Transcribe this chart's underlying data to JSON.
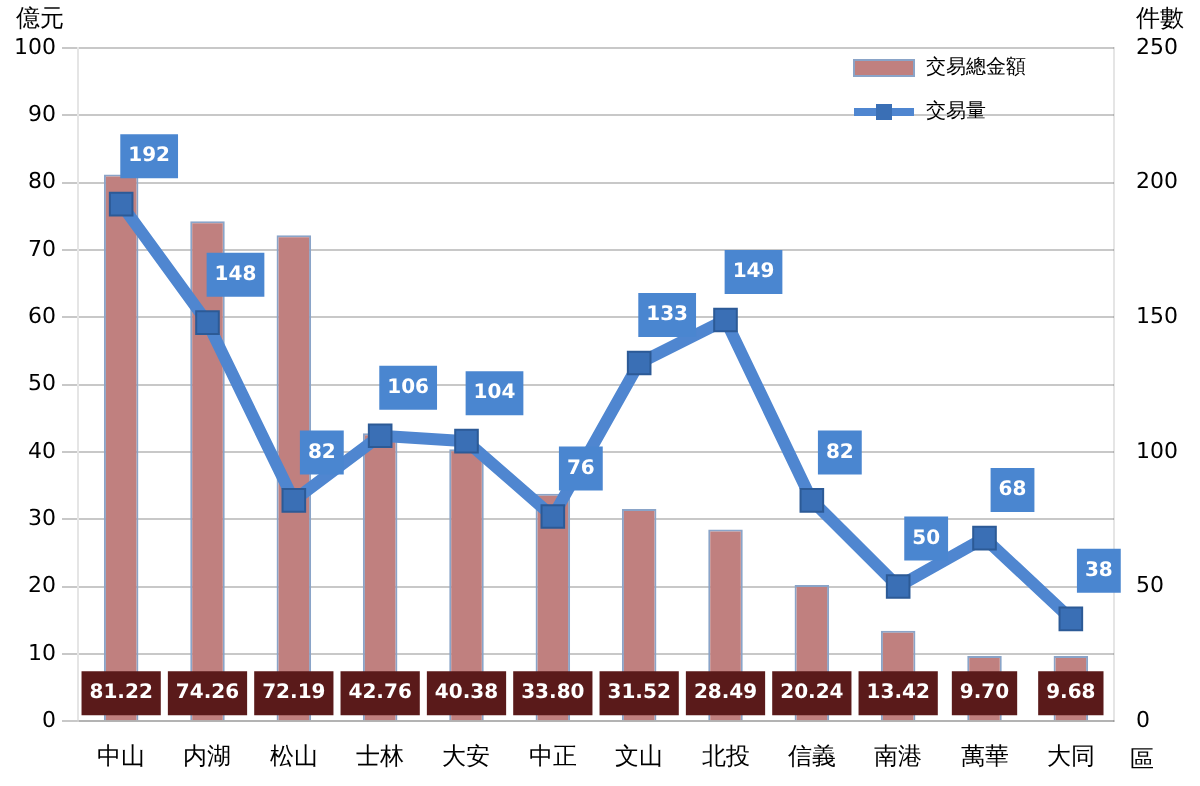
{
  "chart_data": {
    "type": "bar",
    "categories": [
      "中山",
      "内湖",
      "松山",
      "士林",
      "大安",
      "中正",
      "文山",
      "北投",
      "信義",
      "南港",
      "萬華",
      "大同"
    ],
    "xlabel": "區",
    "ylabel": "億元",
    "y2label": "件數",
    "ylim": [
      0,
      100
    ],
    "yticks": [
      0,
      10,
      20,
      30,
      40,
      50,
      60,
      70,
      80,
      90,
      100
    ],
    "y2lim": [
      0,
      250
    ],
    "y2ticks": [
      0,
      50,
      100,
      150,
      200,
      250
    ],
    "grid": "y",
    "legend": "top right",
    "marker": "square",
    "series": [
      {
        "name": "交易總金額",
        "color": "#c0807f",
        "values": [
          81.22,
          74.26,
          72.19,
          42.76,
          40.38,
          33.8,
          31.52,
          28.49,
          20.24,
          13.42,
          9.7,
          9.68
        ],
        "value_labels": [
          "81.22",
          "74.26",
          "72.19",
          "42.76",
          "40.38",
          "33.80",
          "31.52",
          "28.49",
          "20.24",
          "13.42",
          "9.70",
          "9.68"
        ]
      },
      {
        "name": "交易量",
        "type": "line",
        "axis": "y2",
        "color": "#4f86d0",
        "values": [
          192,
          148,
          82,
          106,
          104,
          76,
          133,
          149,
          82,
          50,
          68,
          38
        ],
        "value_labels": [
          "192",
          "148",
          "82",
          "106",
          "104",
          "76",
          "133",
          "149",
          "82",
          "50",
          "68",
          "38"
        ]
      }
    ]
  }
}
